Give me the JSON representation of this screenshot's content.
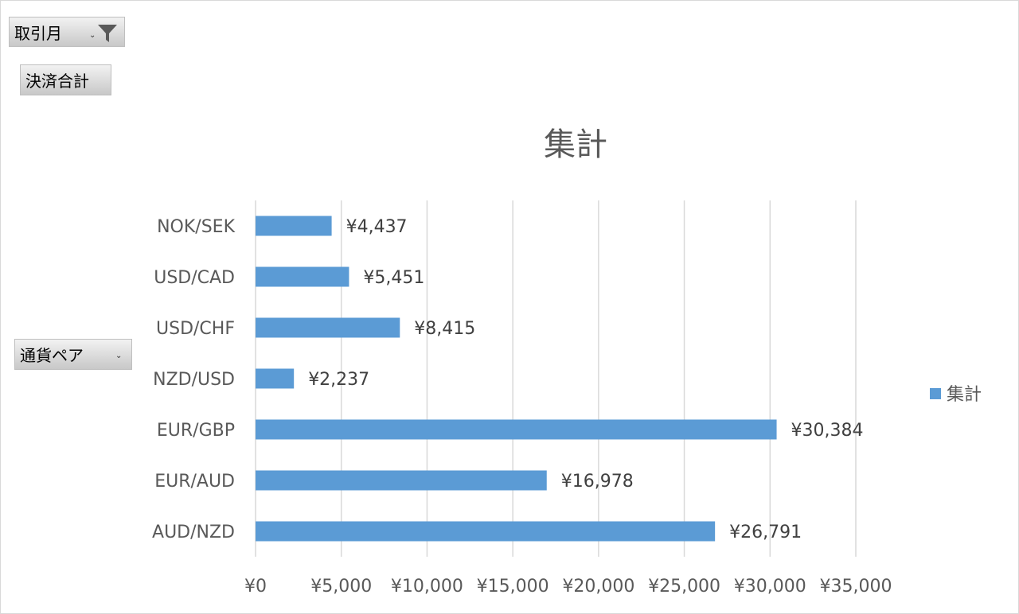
{
  "filters": {
    "month_label": "取引月",
    "value_label": "決済合計",
    "pair_label": "通貨ペア"
  },
  "chart_data": {
    "type": "bar",
    "orientation": "horizontal",
    "title": "集計",
    "categories": [
      "AUD/NZD",
      "EUR/AUD",
      "EUR/GBP",
      "NZD/USD",
      "USD/CHF",
      "USD/CAD",
      "NOK/SEK"
    ],
    "series": [
      {
        "name": "集計",
        "values": [
          26791,
          16978,
          30384,
          2237,
          8415,
          5451,
          4437
        ],
        "data_labels": [
          "¥26,791",
          "¥16,978",
          "¥30,384",
          "¥2,237",
          "¥8,415",
          "¥5,451",
          "¥4,437"
        ]
      }
    ],
    "xlim": [
      0,
      35000
    ],
    "x_ticks": [
      0,
      5000,
      10000,
      15000,
      20000,
      25000,
      30000,
      35000
    ],
    "x_tick_labels": [
      "¥0",
      "¥5,000",
      "¥10,000",
      "¥15,000",
      "¥20,000",
      "¥25,000",
      "¥30,000",
      "¥35,000"
    ],
    "grid": "vertical",
    "legend": "right",
    "bar_color": "#5b9bd5"
  }
}
